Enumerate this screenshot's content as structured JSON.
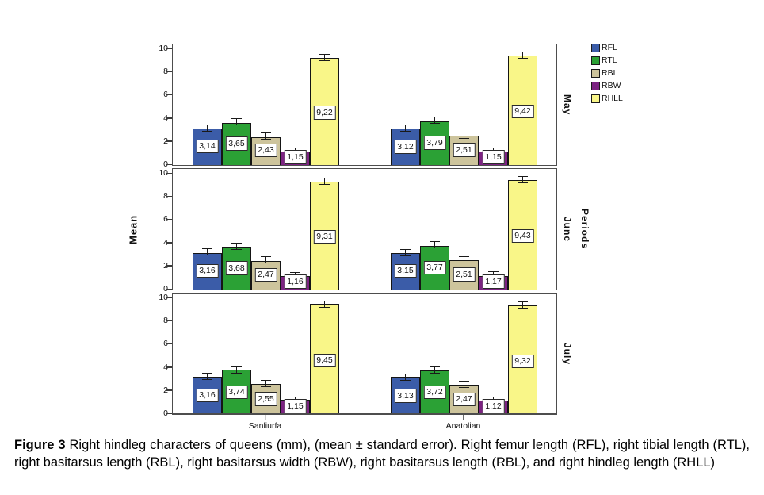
{
  "figure": {
    "caption_prefix": "Figure 3",
    "caption_text": "Right hindleg characters of queens (mm), (mean ± standard error). Right femur length (RFL), right tibial length (RTL), right basitarsus length (RBL), right basitarsus width (RBW), right basitarsus length (RBL), and right hindleg length (RHLL)"
  },
  "chart_data": {
    "type": "bar",
    "title": "",
    "ylabel": "Mean",
    "right_axis_title": "Periods",
    "xlabel": "",
    "ylim": [
      0,
      10
    ],
    "yticks": [
      0,
      2,
      4,
      6,
      8,
      10
    ],
    "grid": false,
    "legend_position": "top-right",
    "error_bars": true,
    "series": [
      {
        "name": "RFL",
        "color": "#3B5CA8"
      },
      {
        "name": "RTL",
        "color": "#2BA135"
      },
      {
        "name": "RBL",
        "color": "#CDC49C"
      },
      {
        "name": "RBW",
        "color": "#7C2382"
      },
      {
        "name": "RHLL",
        "color": "#F9F688"
      }
    ],
    "categories": [
      "Sanliurfa",
      "Anatolian"
    ],
    "panels": [
      {
        "label": "May",
        "groups": [
          {
            "category": "Sanliurfa",
            "values": [
              3.14,
              3.65,
              2.43,
              1.15,
              9.22
            ],
            "labels": [
              "3,14",
              "3,65",
              "2,43",
              "1,15",
              "9,22"
            ]
          },
          {
            "category": "Anatolian",
            "values": [
              3.12,
              3.79,
              2.51,
              1.15,
              9.42
            ],
            "labels": [
              "3,12",
              "3,79",
              "2,51",
              "1,15",
              "9,42"
            ]
          }
        ]
      },
      {
        "label": "June",
        "groups": [
          {
            "category": "Sanliurfa",
            "values": [
              3.16,
              3.68,
              2.47,
              1.16,
              9.31
            ],
            "labels": [
              "3,16",
              "3,68",
              "2,47",
              "1,16",
              "9,31"
            ]
          },
          {
            "category": "Anatolian",
            "values": [
              3.15,
              3.77,
              2.51,
              1.17,
              9.43
            ],
            "labels": [
              "3,15",
              "3,77",
              "2,51",
              "1,17",
              "9,43"
            ]
          }
        ]
      },
      {
        "label": "July",
        "groups": [
          {
            "category": "Sanliurfa",
            "values": [
              3.16,
              3.74,
              2.55,
              1.15,
              9.45
            ],
            "labels": [
              "3,16",
              "3,74",
              "2,55",
              "1,15",
              "9,45"
            ]
          },
          {
            "category": "Anatolian",
            "values": [
              3.13,
              3.72,
              2.47,
              1.12,
              9.32
            ],
            "labels": [
              "3,13",
              "3,72",
              "2,47",
              "1,12",
              "9,32"
            ]
          }
        ]
      }
    ]
  }
}
